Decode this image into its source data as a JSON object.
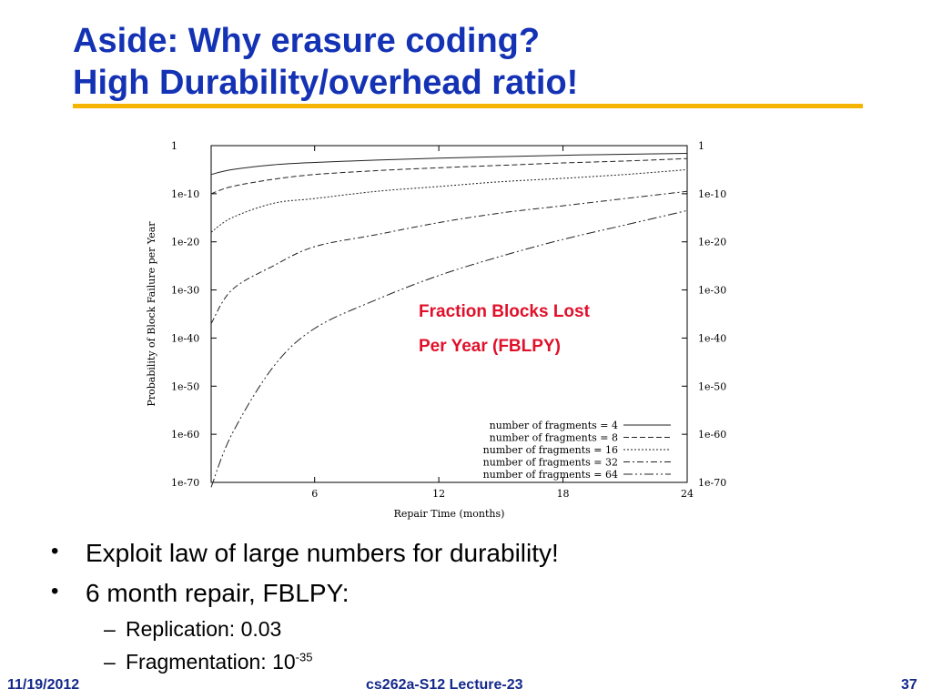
{
  "slide": {
    "title_line1": "Aside: Why erasure coding?",
    "title_line2": "High Durability/overhead ratio!",
    "chart_note_line1": "Fraction Blocks Lost",
    "chart_note_line2": "Per Year (FBLPY)",
    "bullets": [
      "Exploit law of large numbers for durability!",
      "6 month repair, FBLPY:"
    ],
    "sub_bullets": {
      "replication": "Replication: 0.03",
      "fragmentation_base": "Fragmentation: 10",
      "fragmentation_exp": "-35"
    },
    "footer": {
      "date": "11/19/2012",
      "course": "cs262a-S12 Lecture-23",
      "page": "37"
    },
    "colors": {
      "title": "#1432b4",
      "rule": "#f5b400",
      "note": "#e0102a",
      "footer": "#14288c"
    }
  },
  "chart_data": {
    "type": "line",
    "xlabel": "Repair Time (months)",
    "ylabel": "Probability of Block Failure per Year",
    "x_ticks": [
      "6",
      "12",
      "18",
      "24"
    ],
    "y_ticks": [
      "1",
      "1e-10",
      "1e-20",
      "1e-30",
      "1e-40",
      "1e-50",
      "1e-60",
      "1e-70"
    ],
    "xlim": [
      1,
      24
    ],
    "ylim_exp": [
      -70,
      0
    ],
    "y_scale": "log",
    "legend_position": "bottom-right",
    "series": [
      {
        "name": "number of fragments = 4",
        "dash": "solid",
        "x": [
          1,
          2,
          4,
          6,
          9,
          12,
          15,
          18,
          21,
          24
        ],
        "y_exp": [
          -6,
          -5,
          -4,
          -3.5,
          -3,
          -2.6,
          -2.3,
          -2,
          -1.8,
          -1.6
        ]
      },
      {
        "name": "number of fragments = 8",
        "dash": "dashed",
        "x": [
          1,
          2,
          4,
          6,
          9,
          12,
          15,
          18,
          21,
          24
        ],
        "y_exp": [
          -10,
          -8.5,
          -7,
          -6,
          -5.2,
          -4.6,
          -4.1,
          -3.6,
          -3.2,
          -2.7
        ]
      },
      {
        "name": "number of fragments = 16",
        "dash": "dotted",
        "x": [
          1,
          2,
          4,
          6,
          9,
          12,
          15,
          18,
          21,
          24
        ],
        "y_exp": [
          -18,
          -15,
          -12,
          -11,
          -9.5,
          -8.5,
          -7.5,
          -6.8,
          -6,
          -5
        ]
      },
      {
        "name": "number of fragments = 32",
        "dash": "dashdot",
        "x": [
          1,
          2,
          4,
          6,
          9,
          12,
          15,
          18,
          21,
          24
        ],
        "y_exp": [
          -37,
          -30,
          -25,
          -21,
          -18.5,
          -16,
          -14,
          -12.5,
          -11,
          -9.5
        ]
      },
      {
        "name": "number of fragments = 64",
        "dash": "dashdot2",
        "x": [
          1,
          2,
          4,
          6,
          9,
          12,
          15,
          18,
          21,
          24
        ],
        "y_exp": [
          -71,
          -60,
          -46,
          -38,
          -32,
          -27,
          -23,
          -19.5,
          -16.5,
          -13.5
        ]
      }
    ]
  }
}
